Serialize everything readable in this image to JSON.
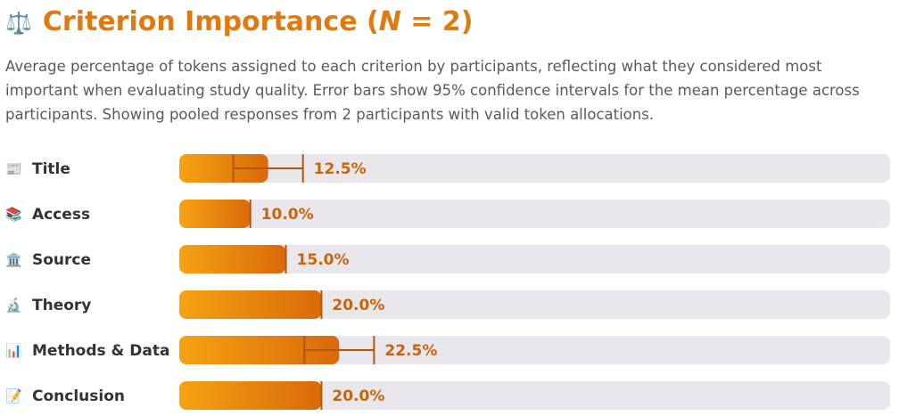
{
  "chart_data": {
    "type": "bar",
    "icon": "⚖️",
    "title": [
      "Criterion Importance (",
      "N",
      " = 2)"
    ],
    "subtitle": "Average percentage of tokens assigned to each criterion by participants, reflecting what they considered most important when evaluating study quality. Error bars show 95% confidence intervals for the mean percentage across participants. Showing pooled responses from 2 participants with valid token allocations.",
    "icons": [
      "📰",
      "📚",
      "🏛️",
      "🔬",
      "📊",
      "📝"
    ],
    "categories": [
      "Title",
      "Access",
      "Source",
      "Theory",
      "Methods & Data",
      "Conclusion"
    ],
    "values": [
      12.5,
      10.0,
      15.0,
      20.0,
      22.5,
      20.0
    ],
    "value_labels": [
      "12.5%",
      "10.0%",
      "15.0%",
      "20.0%",
      "22.5%",
      "20.0%"
    ],
    "errors": [
      4.9,
      0,
      0,
      0,
      4.9,
      0
    ],
    "xlim": [
      0,
      100
    ],
    "color": [
      "#f5a312",
      "#d9690a"
    ],
    "error_color": "#b5540c"
  }
}
